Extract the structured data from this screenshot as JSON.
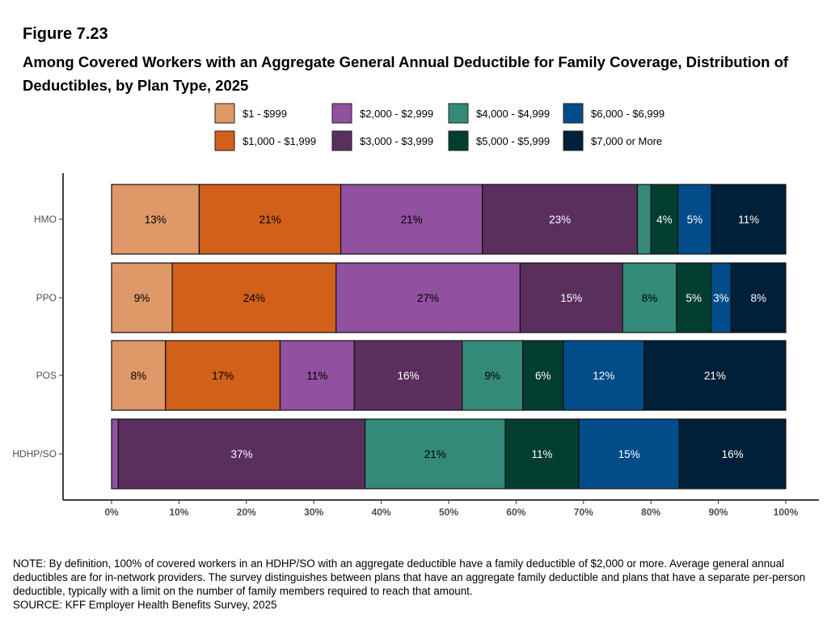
{
  "chart_data": {
    "type": "bar",
    "orientation": "horizontal",
    "stacked": true,
    "figure_label": "Figure 7.23",
    "title": "Among Covered Workers with an Aggregate General Annual Deductible for Family Coverage, Distribution of Deductibles, by Plan Type, 2025",
    "xlabel": "",
    "ylabel": "",
    "xlim": [
      0,
      100
    ],
    "xticks": [
      "0%",
      "10%",
      "20%",
      "30%",
      "40%",
      "50%",
      "60%",
      "70%",
      "80%",
      "90%",
      "100%"
    ],
    "grid": false,
    "legend_position": "top",
    "categories": [
      "HMO",
      "PPO",
      "POS",
      "HDHP/SO"
    ],
    "series": [
      {
        "name": "$1 - $999",
        "color": "#DF9868",
        "label_color": "#000000",
        "values": [
          13,
          9,
          8,
          0
        ],
        "labels": [
          "13%",
          "9%",
          "8%",
          ""
        ]
      },
      {
        "name": "$1,000 - $1,999",
        "color": "#D0601A",
        "label_color": "#000000",
        "values": [
          21,
          24.3,
          17,
          0
        ],
        "labels": [
          "21%",
          "24%",
          "17%",
          ""
        ]
      },
      {
        "name": "$2,000 - $2,999",
        "color": "#9150A0",
        "label_color": "#000000",
        "values": [
          21,
          27.3,
          11,
          1
        ],
        "labels": [
          "21%",
          "27%",
          "11%",
          ""
        ]
      },
      {
        "name": "$3,000 - $3,999",
        "color": "#5A2F5E",
        "label_color": "#FFFFFF",
        "values": [
          23,
          15.2,
          16,
          36.6
        ],
        "labels": [
          "23%",
          "15%",
          "16%",
          "37%"
        ]
      },
      {
        "name": "$4,000 - $4,999",
        "color": "#348A78",
        "label_color": "#000000",
        "values": [
          2,
          8,
          9,
          20.8
        ],
        "labels": [
          "",
          "8%",
          "9%",
          "21%"
        ]
      },
      {
        "name": "$5,000 - $5,999",
        "color": "#023E30",
        "label_color": "#FFFFFF",
        "values": [
          4,
          5.1,
          6,
          10.9
        ],
        "labels": [
          "4%",
          "5%",
          "6%",
          "11%"
        ]
      },
      {
        "name": "$6,000 - $6,999",
        "color": "#024C8A",
        "label_color": "#FFFFFF",
        "values": [
          5,
          3,
          12,
          14.9
        ],
        "labels": [
          "5%",
          "3%",
          "12%",
          "15%"
        ]
      },
      {
        "name": "$7,000 or More",
        "color": "#001F38",
        "label_color": "#FFFFFF",
        "values": [
          11,
          8.1,
          21,
          15.8
        ],
        "labels": [
          "11%",
          "8%",
          "21%",
          "16%"
        ]
      }
    ]
  },
  "note": "NOTE: By definition, 100% of covered workers in an HDHP/SO with an aggregate deductible have a family deductible of $2,000 or more. Average general annual deductibles are for in-network providers. The survey distinguishes between plans that have an aggregate family deductible and plans that have a separate per-person deductible, typically with a limit on the number of family members required to reach that amount.",
  "source": "SOURCE: KFF Employer Health Benefits Survey, 2025"
}
